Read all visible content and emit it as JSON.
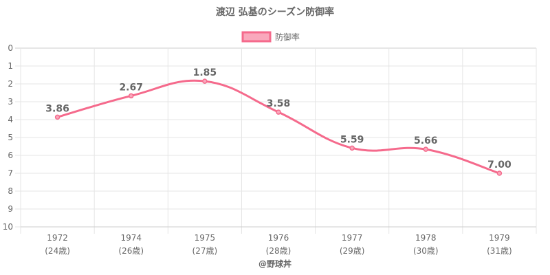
{
  "chart_data": {
    "type": "line",
    "title": "渡辺 弘基のシーズン防御率",
    "legend": {
      "label": "防御率",
      "position": "top"
    },
    "categories": [
      "1972",
      "1974",
      "1975",
      "1976",
      "1977",
      "1978",
      "1979"
    ],
    "subcategories": [
      "(24歳)",
      "(26歳)",
      "(27歳)",
      "(28歳)",
      "(29歳)",
      "(30歳)",
      "(31歳)"
    ],
    "series": [
      {
        "name": "防御率",
        "values": [
          3.86,
          2.67,
          1.85,
          3.58,
          5.59,
          5.66,
          7.0
        ]
      }
    ],
    "data_labels": [
      "3.86",
      "2.67",
      "1.85",
      "3.58",
      "5.59",
      "5.66",
      "7.00"
    ],
    "y_ticks": [
      "0",
      "1",
      "2",
      "3",
      "4",
      "5",
      "6",
      "7",
      "8",
      "9",
      "10"
    ],
    "ylim": [
      0,
      10
    ],
    "y_reversed": true,
    "grid": true,
    "colors": {
      "line": "#f56a8c",
      "fill": "#f9a8bc",
      "text": "#666666",
      "grid": "#e5e5e5"
    }
  },
  "footer": {
    "credit": "@野球丼"
  }
}
